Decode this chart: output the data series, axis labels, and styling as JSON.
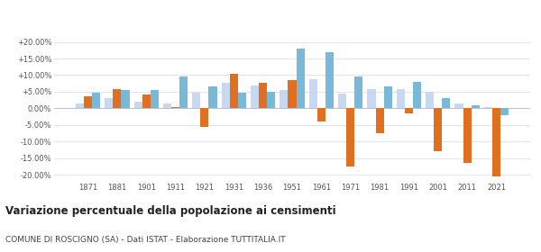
{
  "years": [
    1871,
    1881,
    1901,
    1911,
    1921,
    1931,
    1936,
    1951,
    1961,
    1971,
    1981,
    1991,
    2001,
    2011,
    2021
  ],
  "roscigno": [
    3.5,
    5.7,
    4.2,
    0.5,
    -5.5,
    10.3,
    7.8,
    8.5,
    -4.0,
    -17.5,
    -7.5,
    -1.5,
    -13.0,
    -16.5,
    -20.5
  ],
  "provincia_sa": [
    1.5,
    3.0,
    2.0,
    1.5,
    4.8,
    7.8,
    6.8,
    5.5,
    8.8,
    4.5,
    5.8,
    5.8,
    5.0,
    1.5,
    0.5
  ],
  "campania": [
    4.8,
    5.5,
    5.5,
    9.6,
    6.5,
    4.8,
    5.0,
    18.0,
    17.0,
    9.5,
    6.5,
    8.0,
    3.0,
    1.0,
    -2.0
  ],
  "color_roscigno": "#e07020",
  "color_provincia": "#c8d8f0",
  "color_campania": "#7ab8d8",
  "title": "Variazione percentuale della popolazione ai censimenti",
  "subtitle": "COMUNE DI ROSCIGNO (SA) - Dati ISTAT - Elaborazione TUTTITALIA.IT",
  "ylim": [
    -22,
    22
  ],
  "yticks": [
    -20,
    -15,
    -10,
    -5,
    0,
    5,
    10,
    15,
    20
  ],
  "ytick_labels": [
    "-20.00%",
    "-15.00%",
    "-10.00%",
    "-5.00%",
    "0.00%",
    "+5.00%",
    "+10.00%",
    "+15.00%",
    "+20.00%"
  ],
  "bar_width": 0.28,
  "fig_width": 6.0,
  "fig_height": 2.8,
  "dpi": 100
}
